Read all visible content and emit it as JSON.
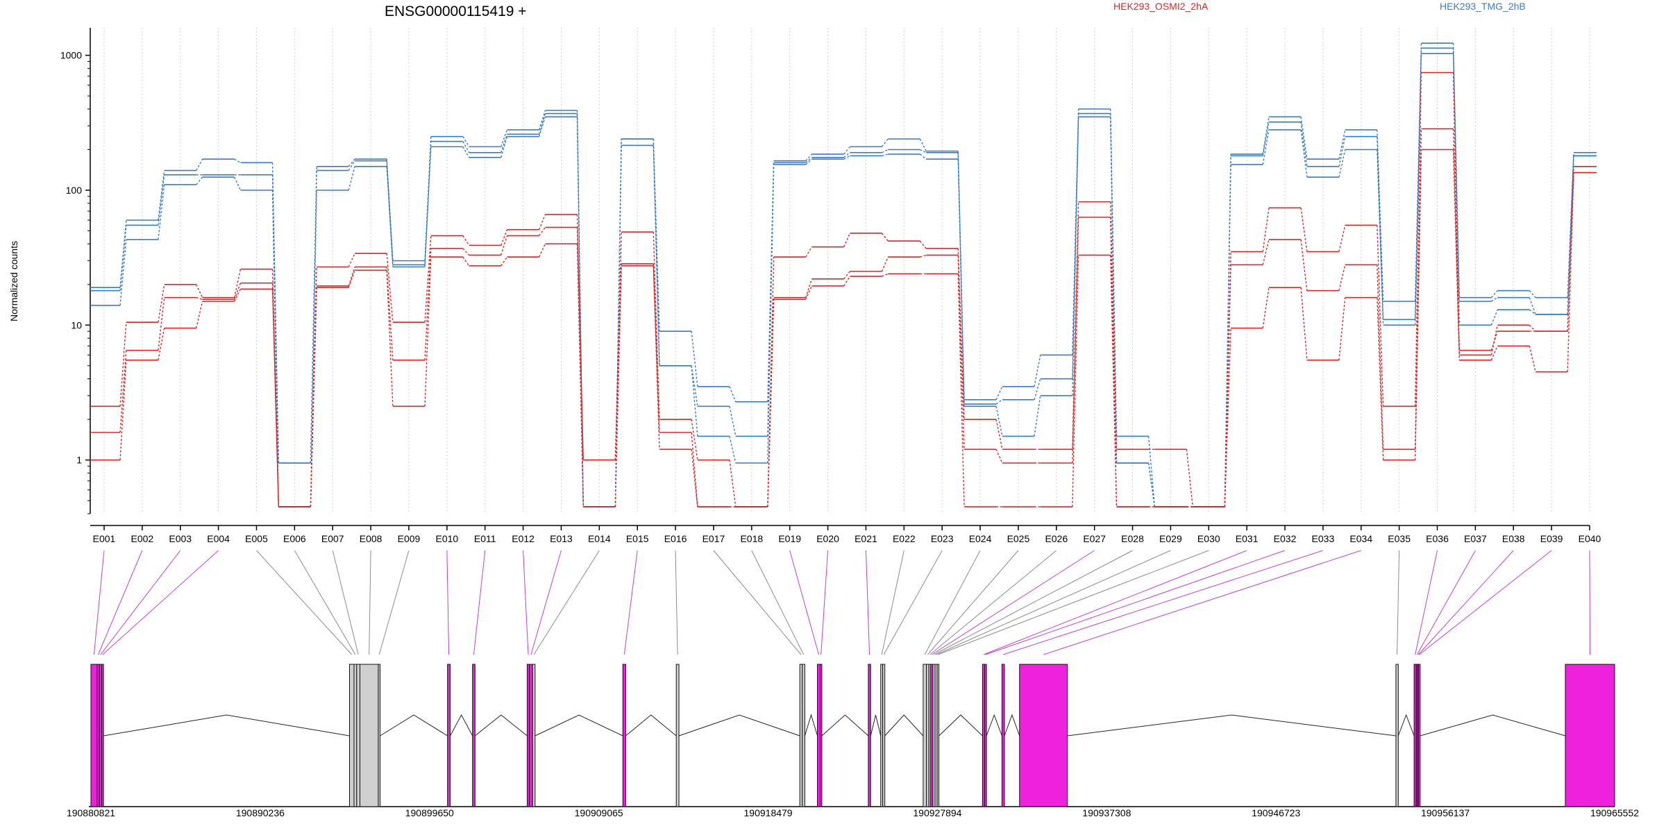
{
  "chart_data": {
    "type": "line",
    "title": "ENSG00000115419 +",
    "ylabel": "Normalized counts",
    "yscale": "log",
    "ylim": [
      0.4,
      1600
    ],
    "yticks": [
      1,
      10,
      100,
      1000
    ],
    "grid": "vertical dotted at exon centers",
    "categories": [
      "E001",
      "E002",
      "E003",
      "E004",
      "E005",
      "E006",
      "E007",
      "E008",
      "E009",
      "E010",
      "E011",
      "E012",
      "E013",
      "E014",
      "E015",
      "E016",
      "E017",
      "E018",
      "E019",
      "E020",
      "E021",
      "E022",
      "E023",
      "E024",
      "E025",
      "E026",
      "E027",
      "E028",
      "E029",
      "E030",
      "E031",
      "E032",
      "E033",
      "E034",
      "E035",
      "E036",
      "E037",
      "E038",
      "E039",
      "E040"
    ],
    "legend": [
      {
        "label": "HEK293_OSMI2_2hA",
        "color": "#d62728"
      },
      {
        "label": "HEK293_TMG_2hB",
        "color": "#3a7bbf"
      }
    ],
    "series": [
      {
        "group": "HEK293_TMG_2hB",
        "color": "#3a7bbf",
        "values": [
          19,
          60,
          140,
          170,
          160,
          0.95,
          150,
          170,
          30,
          250,
          210,
          280,
          390,
          0.45,
          240,
          9,
          3.5,
          2.7,
          165,
          185,
          210,
          240,
          195,
          2.8,
          3.5,
          6,
          400,
          1.5,
          0.45,
          0.45,
          185,
          350,
          170,
          280,
          15,
          1230,
          16,
          18,
          16,
          190
        ]
      },
      {
        "group": "HEK293_TMG_2hB",
        "color": "#3a7bbf",
        "values": [
          18,
          55,
          130,
          130,
          130,
          0.95,
          140,
          165,
          28,
          230,
          190,
          260,
          370,
          0.45,
          240,
          5,
          2.5,
          1.5,
          160,
          175,
          190,
          200,
          190,
          2.6,
          2.8,
          4,
          370,
          0.95,
          0.45,
          0.45,
          180,
          320,
          150,
          250,
          11,
          1130,
          15,
          16,
          12,
          180
        ]
      },
      {
        "group": "HEK293_TMG_2hB",
        "color": "#3a7bbf",
        "values": [
          14,
          43,
          110,
          125,
          100,
          0.45,
          100,
          150,
          27,
          210,
          175,
          250,
          350,
          0.45,
          215,
          5,
          1.5,
          0.95,
          155,
          170,
          180,
          185,
          170,
          2.5,
          1.5,
          3,
          350,
          0.95,
          0.45,
          0.45,
          155,
          280,
          125,
          200,
          10,
          1030,
          10,
          13,
          12,
          180
        ]
      },
      {
        "group": "HEK293_OSMI2_2hA",
        "color": "#d62728",
        "values": [
          2.5,
          10.5,
          20,
          16,
          26,
          0.45,
          27,
          34,
          10.5,
          46,
          39,
          51,
          66,
          1,
          49,
          2,
          1,
          0.45,
          32,
          38,
          48,
          42,
          37,
          2,
          1.2,
          1.2,
          82,
          1.2,
          1.2,
          0.45,
          35,
          74,
          35,
          55,
          2.5,
          745,
          6,
          10,
          9,
          150
        ]
      },
      {
        "group": "HEK293_OSMI2_2hA",
        "color": "#d62728",
        "values": [
          1.6,
          6.5,
          16,
          15.5,
          20.5,
          0.45,
          19.5,
          27,
          5.5,
          37,
          33,
          46,
          53,
          1,
          28.5,
          1.6,
          0.45,
          0.45,
          16,
          22,
          25,
          32,
          33,
          1.2,
          0.95,
          0.95,
          63,
          0.45,
          0.45,
          0.45,
          28,
          43,
          18,
          28,
          1.2,
          285,
          6.5,
          9,
          9,
          135
        ]
      },
      {
        "group": "HEK293_OSMI2_2hA",
        "color": "#d62728",
        "values": [
          1.0,
          5.5,
          9.5,
          15,
          18.5,
          0.45,
          19,
          25.5,
          2.5,
          32,
          27.5,
          32,
          40,
          0.45,
          27.5,
          1.2,
          0.45,
          0.45,
          15.5,
          19.5,
          23,
          24,
          24,
          0.45,
          0.45,
          0.45,
          33,
          0.45,
          0.45,
          0.45,
          9.5,
          19,
          5.5,
          16,
          1.0,
          200,
          5.5,
          7,
          4.5,
          135
        ]
      }
    ],
    "gene_model": {
      "coordinates": [
        "190880821",
        "190890236",
        "190899650",
        "190909065",
        "190918479",
        "190927894",
        "190937308",
        "190946723",
        "190956137",
        "190965552"
      ],
      "range": [
        190880821,
        190965552
      ],
      "exons": [
        {
          "id": "E001",
          "start": 190880821,
          "end": 190881160,
          "color": "#ee22dd"
        },
        {
          "id": "E002",
          "start": 190881160,
          "end": 190881290,
          "color": "#ee22dd"
        },
        {
          "id": "E003",
          "start": 190881290,
          "end": 190881420,
          "color": "#ee22dd"
        },
        {
          "id": "E004",
          "start": 190881420,
          "end": 190881520,
          "color": "#ee22dd"
        },
        {
          "id": "E005",
          "start": 190895200,
          "end": 190895450,
          "color": "#d0d0d0"
        },
        {
          "id": "E006",
          "start": 190895450,
          "end": 190895600,
          "color": "#d0d0d0"
        },
        {
          "id": "E007",
          "start": 190895600,
          "end": 190895780,
          "color": "#d0d0d0"
        },
        {
          "id": "E008",
          "start": 190895780,
          "end": 190896800,
          "color": "#d0d0d0"
        },
        {
          "id": "E009",
          "start": 190896800,
          "end": 190896900,
          "color": "#d0d0d0"
        },
        {
          "id": "E010",
          "start": 190900650,
          "end": 190900800,
          "color": "#ee22dd"
        },
        {
          "id": "E011",
          "start": 190902040,
          "end": 190902180,
          "color": "#ee22dd"
        },
        {
          "id": "E012",
          "start": 190905080,
          "end": 190905200,
          "color": "#ee22dd"
        },
        {
          "id": "E013",
          "start": 190905200,
          "end": 190905380,
          "color": "#ee22dd"
        },
        {
          "id": "E014",
          "start": 190905380,
          "end": 190905520,
          "color": "#d0d0d0"
        },
        {
          "id": "E015",
          "start": 190910400,
          "end": 190910560,
          "color": "#ee22dd"
        },
        {
          "id": "E016",
          "start": 190913370,
          "end": 190913520,
          "color": "#d0d0d0"
        },
        {
          "id": "E017",
          "start": 190920240,
          "end": 190920380,
          "color": "#d0d0d0"
        },
        {
          "id": "E018",
          "start": 190920380,
          "end": 190920520,
          "color": "#d0d0d0"
        },
        {
          "id": "E019",
          "start": 190921220,
          "end": 190921370,
          "color": "#ee22dd"
        },
        {
          "id": "E020",
          "start": 190921370,
          "end": 190921450,
          "color": "#ee22dd"
        },
        {
          "id": "E021",
          "start": 190924050,
          "end": 190924180,
          "color": "#ee22dd"
        },
        {
          "id": "E022",
          "start": 190924740,
          "end": 190924850,
          "color": "#d0d0d0"
        },
        {
          "id": "E023",
          "start": 190924850,
          "end": 190924970,
          "color": "#d0d0d0"
        },
        {
          "id": "E024",
          "start": 190927100,
          "end": 190927280,
          "color": "#d0d0d0"
        },
        {
          "id": "E025",
          "start": 190927280,
          "end": 190927420,
          "color": "#d0d0d0"
        },
        {
          "id": "E026",
          "start": 190927420,
          "end": 190927520,
          "color": "#d0d0d0"
        },
        {
          "id": "E027",
          "start": 190927520,
          "end": 190927640,
          "color": "#ee22dd"
        },
        {
          "id": "E028",
          "start": 190927640,
          "end": 190927760,
          "color": "#d0d0d0"
        },
        {
          "id": "E029",
          "start": 190927760,
          "end": 190927880,
          "color": "#d0d0d0"
        },
        {
          "id": "E030",
          "start": 190927880,
          "end": 190927960,
          "color": "#d0d0d0"
        },
        {
          "id": "E031",
          "start": 190930400,
          "end": 190930520,
          "color": "#ee22dd"
        },
        {
          "id": "E032",
          "start": 190930520,
          "end": 190930620,
          "color": "#ee22dd"
        },
        {
          "id": "E033",
          "start": 190931480,
          "end": 190931620,
          "color": "#ee22dd"
        },
        {
          "id": "E034",
          "start": 190932460,
          "end": 190935120,
          "color": "#ee22dd"
        },
        {
          "id": "E035",
          "start": 190953390,
          "end": 190953520,
          "color": "#d0d0d0"
        },
        {
          "id": "E036",
          "start": 190954400,
          "end": 190954520,
          "color": "#ee22dd"
        },
        {
          "id": "E037",
          "start": 190954520,
          "end": 190954590,
          "color": "#ee22dd"
        },
        {
          "id": "E038",
          "start": 190954590,
          "end": 190954640,
          "color": "#ee22dd"
        },
        {
          "id": "E039",
          "start": 190954640,
          "end": 190954700,
          "color": "#ee22dd"
        },
        {
          "id": "E040",
          "start": 190962810,
          "end": 190965552,
          "color": "#ee22dd"
        }
      ]
    }
  }
}
